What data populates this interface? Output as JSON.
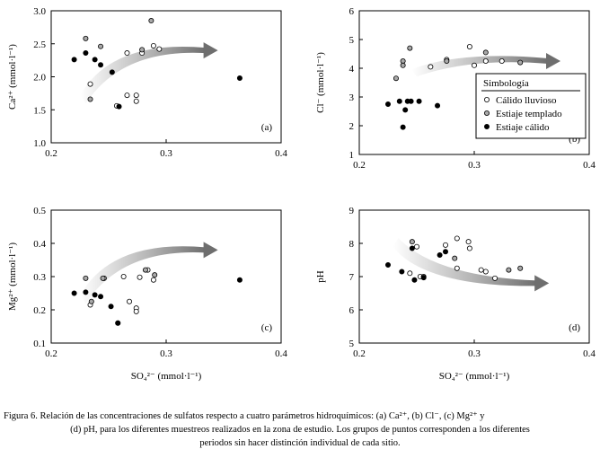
{
  "chart_data": [
    {
      "id": "a",
      "type": "scatter",
      "panel_label": "(a)",
      "ylabel": "Ca²⁺ (mmol·l⁻¹)",
      "xlabel": "",
      "xlim": [
        0.2,
        0.4
      ],
      "ylim": [
        1.0,
        3.0
      ],
      "xticks": [
        "0.2",
        "0.3",
        "0.4"
      ],
      "yticks": [
        "1.0",
        "1.5",
        "2.0",
        "2.5",
        "3.0"
      ],
      "series": [
        {
          "name": "Cálido lluvioso",
          "points": [
            [
              0.266,
              2.36
            ],
            [
              0.279,
              2.36
            ],
            [
              0.289,
              2.47
            ],
            [
              0.294,
              2.42
            ],
            [
              0.266,
              1.72
            ],
            [
              0.274,
              1.72
            ],
            [
              0.274,
              1.63
            ],
            [
              0.257,
              1.56
            ],
            [
              0.234,
              1.89
            ]
          ]
        },
        {
          "name": "Estiaje templado",
          "points": [
            [
              0.287,
              2.85
            ],
            [
              0.23,
              2.58
            ],
            [
              0.243,
              2.46
            ],
            [
              0.279,
              2.41
            ],
            [
              0.234,
              1.66
            ]
          ]
        },
        {
          "name": "Estiaje cálido",
          "points": [
            [
              0.22,
              2.26
            ],
            [
              0.23,
              2.36
            ],
            [
              0.238,
              2.26
            ],
            [
              0.243,
              2.18
            ],
            [
              0.253,
              2.07
            ],
            [
              0.259,
              1.55
            ],
            [
              0.364,
              1.98
            ]
          ]
        }
      ],
      "arrow_direction": "up-right"
    },
    {
      "id": "b",
      "type": "scatter",
      "panel_label": "(b)",
      "ylabel": "Cl⁻ (mmol·l⁻¹)",
      "xlabel": "",
      "xlim": [
        0.2,
        0.4
      ],
      "ylim": [
        1,
        6
      ],
      "xticks": [
        "0.2",
        "0.3",
        "0.4"
      ],
      "yticks": [
        "1",
        "2",
        "3",
        "4",
        "5",
        "6"
      ],
      "series": [
        {
          "name": "Cálido lluvioso",
          "points": [
            [
              0.262,
              4.05
            ],
            [
              0.276,
              4.3
            ],
            [
              0.296,
              4.75
            ],
            [
              0.31,
              4.25
            ],
            [
              0.3,
              4.1
            ],
            [
              0.324,
              4.25
            ]
          ]
        },
        {
          "name": "Estiaje templado",
          "points": [
            [
              0.238,
              4.25
            ],
            [
              0.244,
              4.7
            ],
            [
              0.238,
              4.1
            ],
            [
              0.232,
              3.65
            ],
            [
              0.276,
              4.25
            ],
            [
              0.31,
              4.55
            ],
            [
              0.34,
              4.2
            ]
          ]
        },
        {
          "name": "Estiaje cálido",
          "points": [
            [
              0.225,
              2.75
            ],
            [
              0.235,
              2.85
            ],
            [
              0.24,
              2.55
            ],
            [
              0.242,
              2.85
            ],
            [
              0.245,
              2.85
            ],
            [
              0.252,
              2.85
            ],
            [
              0.268,
              2.7
            ],
            [
              0.238,
              1.95
            ]
          ]
        }
      ],
      "arrow_direction": "right",
      "legend": {
        "title": "Simbología",
        "entries": [
          "Cálido lluvioso",
          "Estiaje templado",
          "Estiaje cálido"
        ],
        "position": "right"
      }
    },
    {
      "id": "c",
      "type": "scatter",
      "panel_label": "(c)",
      "ylabel": "Mg²⁺ (mmol·l⁻¹)",
      "xlabel": "SO₄²⁻ (mmol·l⁻¹)",
      "xlim": [
        0.2,
        0.4
      ],
      "ylim": [
        0.1,
        0.5
      ],
      "xticks": [
        "0.2",
        "0.3",
        "0.4"
      ],
      "yticks": [
        "0.1",
        "0.2",
        "0.3",
        "0.4",
        "0.5"
      ],
      "series": [
        {
          "name": "Cálido lluvioso",
          "points": [
            [
              0.246,
              0.295
            ],
            [
              0.263,
              0.3
            ],
            [
              0.284,
              0.32
            ],
            [
              0.289,
              0.29
            ],
            [
              0.277,
              0.298
            ],
            [
              0.268,
              0.225
            ],
            [
              0.274,
              0.205
            ],
            [
              0.274,
              0.195
            ],
            [
              0.234,
              0.215
            ],
            [
              0.258,
              0.16
            ]
          ]
        },
        {
          "name": "Estiaje templado",
          "points": [
            [
              0.23,
              0.295
            ],
            [
              0.245,
              0.295
            ],
            [
              0.282,
              0.32
            ],
            [
              0.29,
              0.305
            ],
            [
              0.235,
              0.225
            ]
          ]
        },
        {
          "name": "Estiaje cálido",
          "points": [
            [
              0.22,
              0.25
            ],
            [
              0.23,
              0.253
            ],
            [
              0.238,
              0.245
            ],
            [
              0.243,
              0.24
            ],
            [
              0.252,
              0.21
            ],
            [
              0.258,
              0.16
            ],
            [
              0.364,
              0.29
            ]
          ]
        }
      ],
      "arrow_direction": "up-right"
    },
    {
      "id": "d",
      "type": "scatter",
      "panel_label": "(d)",
      "ylabel": "pH",
      "xlabel": "SO₄²⁻ (mmol·l⁻¹)",
      "xlim": [
        0.2,
        0.4
      ],
      "ylim": [
        5,
        9
      ],
      "xticks": [
        "0.2",
        "0.3",
        "0.4"
      ],
      "yticks": [
        "5",
        "6",
        "7",
        "8",
        "9"
      ],
      "series": [
        {
          "name": "Cálido lluvioso",
          "points": [
            [
              0.275,
              7.95
            ],
            [
              0.285,
              8.15
            ],
            [
              0.295,
              8.05
            ],
            [
              0.296,
              7.85
            ],
            [
              0.285,
              7.25
            ],
            [
              0.306,
              7.2
            ],
            [
              0.31,
              7.15
            ],
            [
              0.318,
              6.95
            ],
            [
              0.244,
              7.1
            ],
            [
              0.25,
              7.9
            ],
            [
              0.253,
              7.0
            ]
          ]
        },
        {
          "name": "Estiaje templado",
          "points": [
            [
              0.246,
              8.05
            ],
            [
              0.283,
              7.55
            ],
            [
              0.33,
              7.2
            ],
            [
              0.34,
              7.25
            ],
            [
              0.256,
              7.0
            ]
          ]
        },
        {
          "name": "Estiaje cálido",
          "points": [
            [
              0.225,
              7.35
            ],
            [
              0.237,
              7.15
            ],
            [
              0.246,
              7.85
            ],
            [
              0.248,
              6.9
            ],
            [
              0.256,
              6.97
            ],
            [
              0.27,
              7.65
            ],
            [
              0.275,
              7.75
            ]
          ]
        }
      ],
      "arrow_direction": "down-right"
    }
  ],
  "caption": {
    "line1": "Figura 6. Relación de las concentraciones de sulfatos respecto a cuatro parámetros hidroquímicos: (a) Ca²⁺, (b) Cl⁻, (c) Mg²⁺ y",
    "line2": "(d) pH, para los diferentes muestreos realizados en la zona de estudio. Los grupos de puntos corresponden a los diferentes",
    "line3": "periodos sin hacer distinción individual de cada sitio."
  }
}
